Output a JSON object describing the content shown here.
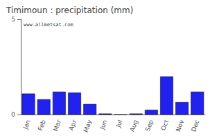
{
  "chart_data": {
    "type": "bar",
    "title": "Timimoun : precipitation (mm)",
    "categories": [
      "Jan",
      "Feb",
      "Mar",
      "Apr",
      "May",
      "Jun",
      "Jul",
      "Aug",
      "Sep",
      "Oct",
      "Nov",
      "Dec"
    ],
    "values": [
      1.1,
      0.8,
      1.2,
      1.15,
      0.55,
      0.05,
      0.0,
      0.05,
      0.25,
      2.0,
      0.65,
      1.2
    ],
    "color": "#2222ee",
    "ylim": [
      0,
      5
    ],
    "yticks": [
      0,
      5
    ],
    "grid": false,
    "annotations": [
      "www.allmetsat.com"
    ]
  }
}
